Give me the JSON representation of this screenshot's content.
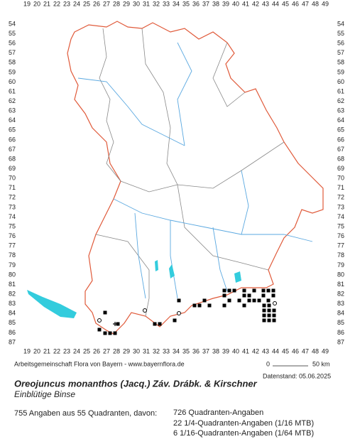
{
  "map": {
    "x_labels": [
      19,
      20,
      21,
      22,
      23,
      24,
      25,
      26,
      27,
      28,
      29,
      30,
      31,
      32,
      33,
      34,
      35,
      36,
      37,
      38,
      39,
      40,
      41,
      42,
      43,
      44,
      45,
      46,
      47,
      48,
      49
    ],
    "y_labels": [
      54,
      55,
      56,
      57,
      58,
      59,
      60,
      61,
      62,
      63,
      64,
      65,
      66,
      67,
      68,
      69,
      70,
      71,
      72,
      73,
      74,
      75,
      76,
      77,
      78,
      79,
      80,
      81,
      82,
      83,
      84,
      85,
      86,
      87
    ],
    "credit": "Arbeitsgemeinschaft Flora von Bayern - www.bayernflora.de",
    "scale_start": "0",
    "scale_end": "50 km",
    "date": "Datenstand: 05.06.2025",
    "title": "Oreojuncus monanthos (Jacq.) Záv. Drábk. & Kirschner",
    "subtitle": "Einblütige Binse",
    "summary": "755 Angaben aus 55 Quadranten, davon:",
    "counts": [
      "726 Quadranten-Angaben",
      "22 1/4-Quadranten-Angaben (1/16 MTB)",
      "6 1/16-Quadranten-Angaben (1/64 MTB)"
    ]
  }
}
